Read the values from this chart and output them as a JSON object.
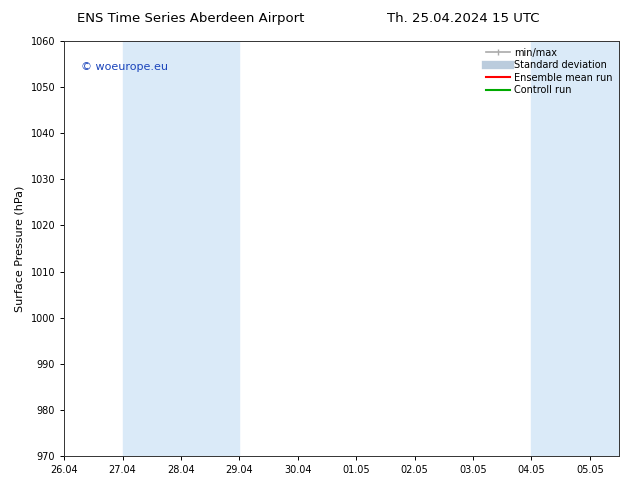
{
  "title_left": "ENS Time Series Aberdeen Airport",
  "title_right": "Th. 25.04.2024 15 UTC",
  "ylabel": "Surface Pressure (hPa)",
  "ylim": [
    970,
    1060
  ],
  "yticks": [
    970,
    980,
    990,
    1000,
    1010,
    1020,
    1030,
    1040,
    1050,
    1060
  ],
  "x_tick_labels": [
    "26.04",
    "27.04",
    "28.04",
    "29.04",
    "30.04",
    "01.05",
    "02.05",
    "03.05",
    "04.05",
    "05.05"
  ],
  "x_tick_positions": [
    0,
    1,
    2,
    3,
    4,
    5,
    6,
    7,
    8,
    9
  ],
  "xlim_right": 9.5,
  "shaded_bands": [
    {
      "x_start": 1,
      "x_end": 3,
      "color": "#daeaf8"
    },
    {
      "x_start": 8,
      "x_end": 9.5,
      "color": "#daeaf8"
    }
  ],
  "watermark_text": "© woeurope.eu",
  "watermark_color": "#1a44bb",
  "legend_entries": [
    {
      "label": "min/max",
      "color": "#aaaaaa",
      "lw": 1.2
    },
    {
      "label": "Standard deviation",
      "color": "#bbccdd",
      "lw": 6
    },
    {
      "label": "Ensemble mean run",
      "color": "#ff0000",
      "lw": 1.5
    },
    {
      "label": "Controll run",
      "color": "#00aa00",
      "lw": 1.5
    }
  ],
  "background_color": "#ffffff",
  "plot_bg_color": "#ffffff",
  "title_fontsize": 9.5,
  "ylabel_fontsize": 8,
  "tick_fontsize": 7,
  "watermark_fontsize": 8,
  "legend_fontsize": 7
}
